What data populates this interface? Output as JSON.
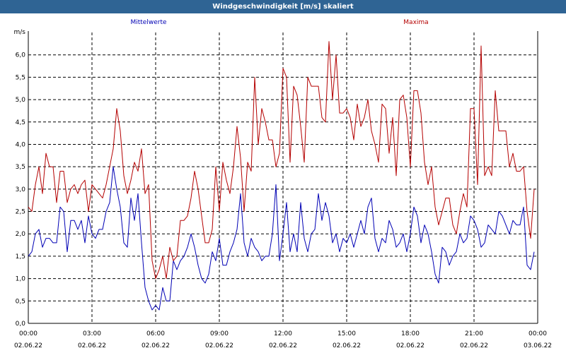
{
  "window": {
    "title": "Windgeschwindigkeit [m/s] skaliert"
  },
  "colors": {
    "titlebar": "#2f6494",
    "mean": "#0000b4",
    "max": "#b40000",
    "grid": "#000000"
  },
  "chart_data": {
    "type": "line",
    "title": "Windgeschwindigkeit [m/s] skaliert",
    "ylabel": "m/s",
    "ylim": [
      0,
      6.5
    ],
    "yticks": [
      "0,0",
      "0,5",
      "1,0",
      "1,5",
      "2,0",
      "2,5",
      "3,0",
      "3,5",
      "4,0",
      "4,5",
      "5,0",
      "5,5",
      "6,0"
    ],
    "xlim_hours": [
      0,
      24
    ],
    "xticks": [
      {
        "time": "00:00",
        "date": "02.06.22"
      },
      {
        "time": "03:00",
        "date": "02.06.22"
      },
      {
        "time": "06:00",
        "date": "02.06.22"
      },
      {
        "time": "09:00",
        "date": "02.06.22"
      },
      {
        "time": "12:00",
        "date": "02.06.22"
      },
      {
        "time": "15:00",
        "date": "02.06.22"
      },
      {
        "time": "18:00",
        "date": "02.06.22"
      },
      {
        "time": "21:00",
        "date": "02.06.22"
      },
      {
        "time": "00:00",
        "date": "03.06.22"
      }
    ],
    "grid": true,
    "legend_placement": "top",
    "sample_interval_minutes": 10,
    "series": [
      {
        "name": "Mittelwerte",
        "color": "#0000b4",
        "values": [
          1.5,
          1.6,
          2.0,
          2.1,
          1.7,
          1.9,
          1.9,
          1.8,
          1.8,
          2.6,
          2.5,
          1.6,
          2.3,
          2.3,
          2.1,
          2.3,
          1.8,
          2.4,
          2.0,
          1.9,
          2.1,
          2.1,
          2.5,
          2.7,
          3.5,
          3.0,
          2.6,
          1.8,
          1.7,
          2.8,
          2.3,
          2.9,
          1.8,
          0.8,
          0.5,
          0.3,
          0.4,
          0.3,
          0.8,
          0.5,
          0.5,
          1.4,
          1.2,
          1.4,
          1.5,
          1.7,
          2.0,
          1.7,
          1.3,
          1.0,
          0.9,
          1.1,
          1.6,
          1.4,
          1.9,
          1.3,
          1.3,
          1.6,
          1.8,
          2.1,
          2.9,
          1.8,
          1.5,
          1.9,
          1.7,
          1.6,
          1.4,
          1.5,
          1.5,
          2.0,
          3.1,
          1.4,
          2.0,
          2.7,
          1.6,
          2.0,
          1.6,
          2.7,
          1.9,
          1.6,
          2.0,
          2.1,
          2.9,
          2.3,
          2.7,
          2.4,
          1.8,
          2.0,
          1.6,
          1.9,
          1.8,
          2.0,
          1.7,
          2.0,
          2.3,
          2.0,
          2.6,
          2.8,
          1.9,
          1.6,
          1.9,
          1.8,
          2.3,
          2.1,
          1.7,
          1.8,
          2.0,
          1.6,
          2.0,
          2.6,
          2.4,
          1.8,
          2.2,
          2.0,
          1.6,
          1.1,
          0.9,
          1.7,
          1.6,
          1.3,
          1.5,
          1.6,
          2.0,
          1.8,
          1.9,
          2.4,
          2.3,
          2.1,
          1.7,
          1.8,
          2.2,
          2.1,
          2.0,
          2.5,
          2.4,
          2.2,
          2.0,
          2.3,
          2.2,
          2.2,
          2.6,
          1.3,
          1.2,
          1.6
        ]
      },
      {
        "name": "Maxima",
        "color": "#b40000",
        "values": [
          2.6,
          2.5,
          3.1,
          3.5,
          2.9,
          3.8,
          3.5,
          3.5,
          2.7,
          3.4,
          3.4,
          2.7,
          3.0,
          3.1,
          2.9,
          3.1,
          3.2,
          2.5,
          3.1,
          3.0,
          2.9,
          2.8,
          3.1,
          3.5,
          3.9,
          4.8,
          4.3,
          3.3,
          2.9,
          3.2,
          3.6,
          3.4,
          3.9,
          2.9,
          3.1,
          1.4,
          1.0,
          1.2,
          1.5,
          1.0,
          1.7,
          1.4,
          1.5,
          2.3,
          2.3,
          2.4,
          2.8,
          3.4,
          3.0,
          2.4,
          1.8,
          1.8,
          2.1,
          3.5,
          2.5,
          3.6,
          3.2,
          2.9,
          3.5,
          4.4,
          3.7,
          2.5,
          3.6,
          3.4,
          5.5,
          4.0,
          4.8,
          4.5,
          4.1,
          4.1,
          3.5,
          3.8,
          5.7,
          5.5,
          3.6,
          5.3,
          5.1,
          4.4,
          3.6,
          5.5,
          5.3,
          5.3,
          5.3,
          4.6,
          4.5,
          6.3,
          5.0,
          6.0,
          4.7,
          4.7,
          4.8,
          4.6,
          4.1,
          4.9,
          4.4,
          4.6,
          5.0,
          4.3,
          4.0,
          3.6,
          4.9,
          4.8,
          3.8,
          4.6,
          3.3,
          5.0,
          5.1,
          4.6,
          3.5,
          5.2,
          5.2,
          4.7,
          3.6,
          3.1,
          3.5,
          2.6,
          2.2,
          2.5,
          2.8,
          2.8,
          2.2,
          2.0,
          2.5,
          2.9,
          2.6,
          4.8,
          4.8,
          3.1,
          6.2,
          3.3,
          3.5,
          3.3,
          5.2,
          4.3,
          4.3,
          4.3,
          3.5,
          3.8,
          3.4,
          3.4,
          3.5,
          2.5,
          1.9,
          3.0
        ]
      }
    ]
  }
}
